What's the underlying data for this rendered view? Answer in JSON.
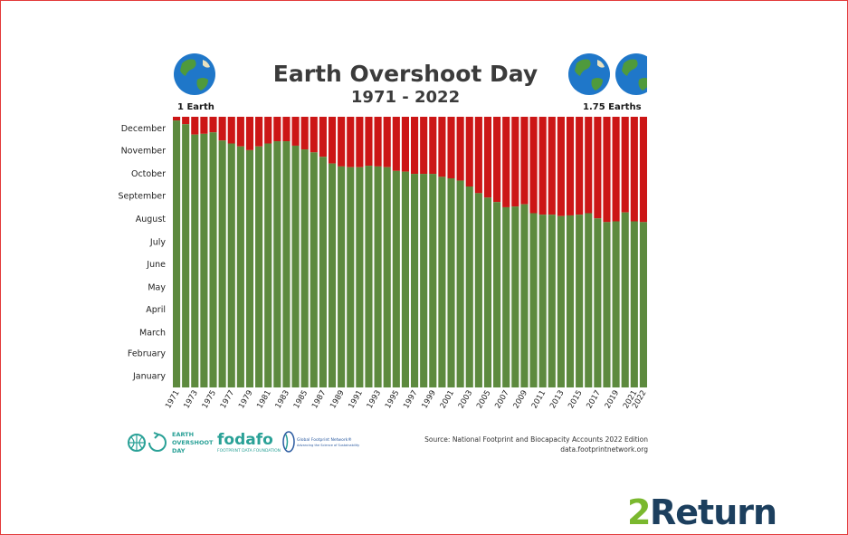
{
  "chart_data": {
    "type": "bar",
    "title": "Earth Overshoot Day",
    "subtitle": "1971 - 2022",
    "months": [
      "January",
      "February",
      "March",
      "April",
      "May",
      "June",
      "July",
      "August",
      "September",
      "October",
      "November",
      "December"
    ],
    "x": [
      1971,
      1972,
      1973,
      1974,
      1975,
      1976,
      1977,
      1978,
      1979,
      1980,
      1981,
      1982,
      1983,
      1984,
      1985,
      1986,
      1987,
      1988,
      1989,
      1990,
      1991,
      1992,
      1993,
      1994,
      1995,
      1996,
      1997,
      1998,
      1999,
      2000,
      2001,
      2002,
      2003,
      2004,
      2005,
      2006,
      2007,
      2008,
      2009,
      2010,
      2011,
      2012,
      2013,
      2014,
      2015,
      2016,
      2017,
      2018,
      2019,
      2020,
      2021,
      2022
    ],
    "x_tick_labels": [
      "1971",
      "1973",
      "1975",
      "1977",
      "1979",
      "1981",
      "1983",
      "1985",
      "1987",
      "1989",
      "1991",
      "1993",
      "1995",
      "1997",
      "1999",
      "2001",
      "2003",
      "2005",
      "2007",
      "2009",
      "2011",
      "2013",
      "2015",
      "2017",
      "2019",
      "2021",
      "2022"
    ],
    "overshoot_day_of_year": [
      360,
      355,
      341,
      342,
      344,
      333,
      329,
      325,
      320,
      325,
      329,
      332,
      332,
      326,
      321,
      317,
      311,
      302,
      298,
      297,
      297,
      299,
      298,
      297,
      292,
      291,
      288,
      288,
      288,
      284,
      282,
      279,
      271,
      262,
      256,
      250,
      243,
      244,
      247,
      235,
      233,
      233,
      231,
      232,
      233,
      235,
      228,
      223,
      224,
      236,
      224,
      223
    ],
    "series": [
      {
        "name": "",
        "color": "#5d8a3e"
      },
      {
        "name": "",
        "color": "#cc1616"
      }
    ],
    "y_range_days": [
      0,
      365
    ],
    "grid": false,
    "left_label": "1 Earth",
    "right_label": "1.75 Earths",
    "source_line1": "Source: National Footprint and Biocapacity Accounts 2022 Edition",
    "source_line2": "data.footprintnetwork.org"
  },
  "logos": {
    "eod_line1": "EARTH",
    "eod_line2": "OVERSHOOT",
    "eod_line3": "DAY",
    "fodafo_name": "fodafo",
    "fodafo_sub": "FOOTPRINT DATA FOUNDATION",
    "gfn_line1": "Global Footprint Network®",
    "gfn_line2": "Advancing the Science of Sustainability"
  },
  "brand": {
    "prefix": "2",
    "name": "Return"
  },
  "colors": {
    "green": "#5d8a3e",
    "red": "#cc1616",
    "frame": "#e23a3a",
    "brand_green": "#7ab82e",
    "brand_blue": "#1c3f5e",
    "logo_teal": "#2aa197"
  }
}
